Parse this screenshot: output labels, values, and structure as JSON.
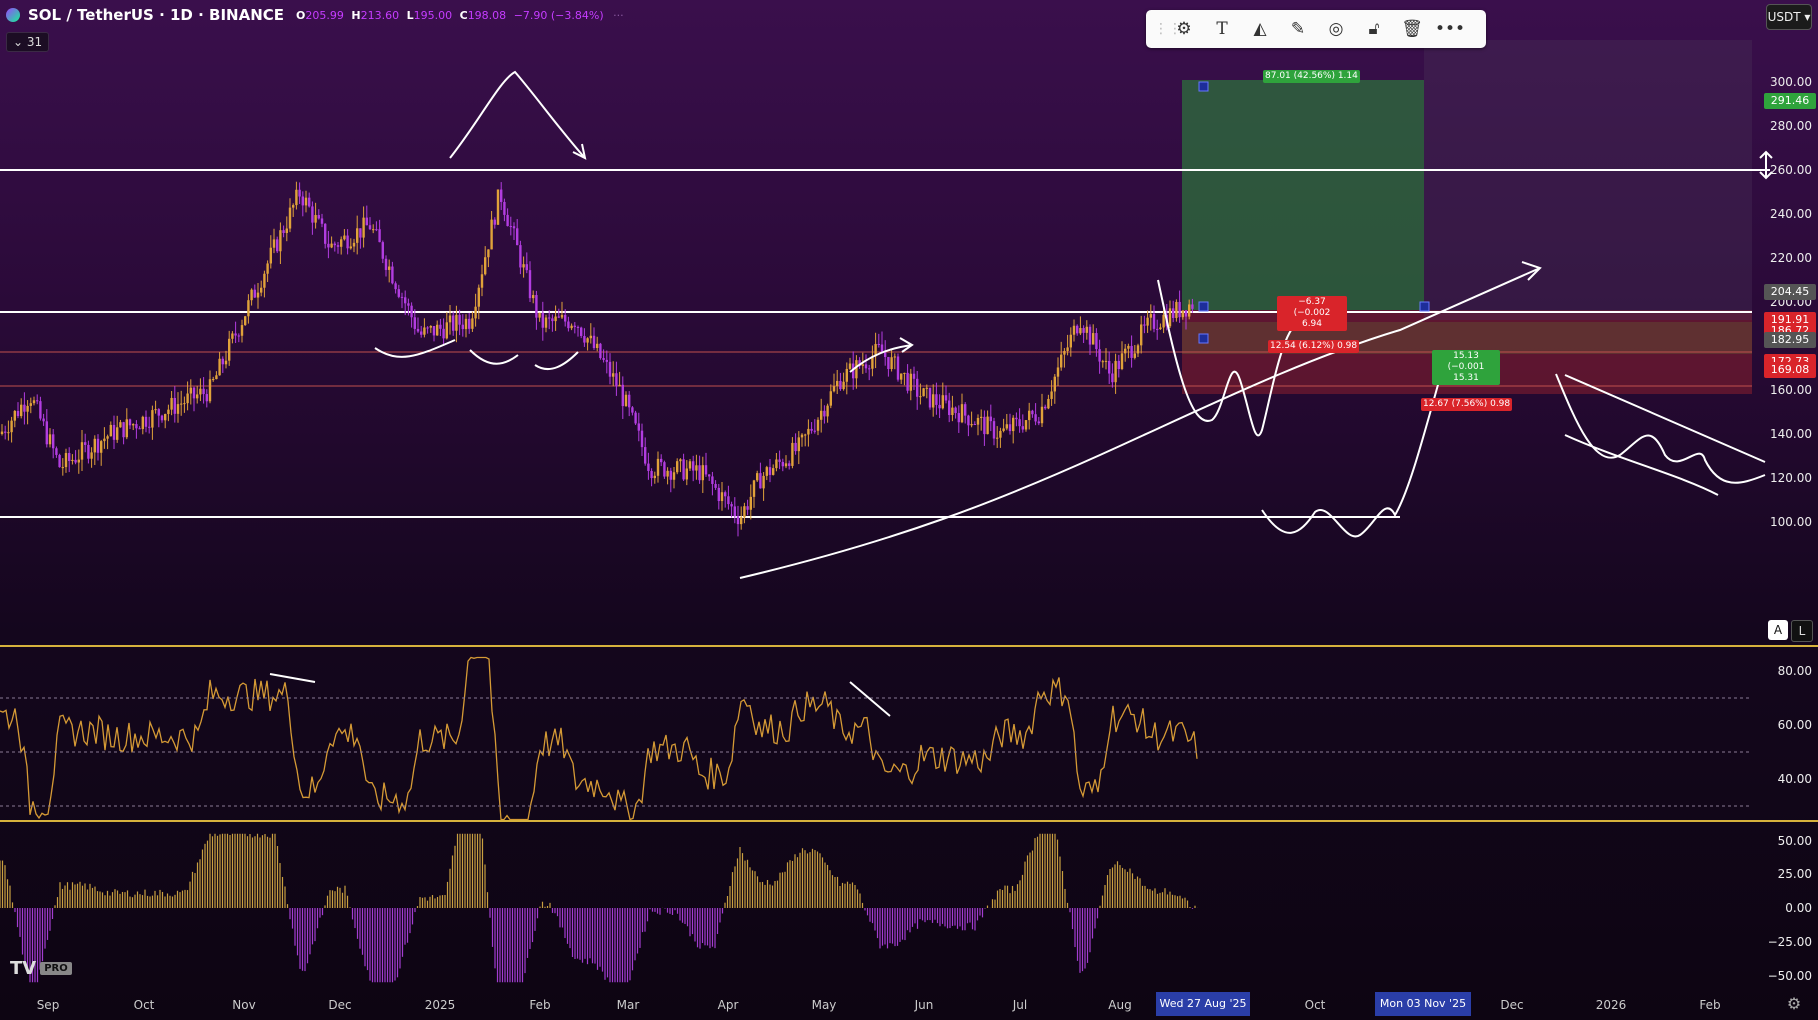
{
  "header": {
    "symbol": "SOL / TetherUS · 1D · BINANCE",
    "open_label": "O",
    "open": "205.99",
    "high_label": "H",
    "high": "213.60",
    "low_label": "L",
    "low": "195.00",
    "close_label": "C",
    "close": "198.08",
    "change": "−7.90 (−3.84%)",
    "more": "···",
    "indicator_count": "31"
  },
  "toolbar": {
    "grip_icon": "drag-handle-icon",
    "icons": [
      "template-icon",
      "text-icon",
      "fill-icon",
      "line-color-icon",
      "settings-icon",
      "lock-icon",
      "delete-icon",
      "more-icon"
    ]
  },
  "currency": "USDT",
  "price_axis": {
    "labels": [
      "300.00",
      "280.00",
      "260.00",
      "240.00",
      "220.00",
      "200.00",
      "160.00",
      "140.00",
      "120.00",
      "100.00"
    ],
    "tags": [
      {
        "value": "291.46",
        "color": "#2fa33c"
      },
      {
        "value": "204.45",
        "color": "#555555"
      },
      {
        "value": "191.91",
        "color": "#d9242a"
      },
      {
        "value": "186.72",
        "color": "#d9242a"
      },
      {
        "value": "182.95",
        "color": "#555555"
      },
      {
        "value": "172.73",
        "color": "#d9242a"
      },
      {
        "value": "169.08",
        "color": "#d9242a"
      }
    ]
  },
  "rsi_axis": {
    "labels": [
      "80.00",
      "60.00",
      "40.00"
    ]
  },
  "osc_axis": {
    "labels": [
      "50.00",
      "25.00",
      "0.00",
      "−25.00",
      "−50.00"
    ]
  },
  "position": {
    "target_label": "87.01 (42.56%) 1.14",
    "stop_label_line1": "−6.37 (−0.002",
    "stop_label_line2": "6.94",
    "entry_label": "12.54 (6.12%) 0.98",
    "green_label_line1": "15.13 (−0.001",
    "green_label_line2": "15.31",
    "red_label": "12.67 (7.56%) 0.98"
  },
  "scale_buttons": {
    "auto": "A",
    "log": "L"
  },
  "time_axis": {
    "labels": [
      "Sep",
      "Oct",
      "Nov",
      "Dec",
      "2025",
      "Feb",
      "Mar",
      "Apr",
      "May",
      "Jun",
      "Jul",
      "Aug",
      "Oct",
      "Dec",
      "2026",
      "Feb"
    ],
    "marker_start": "Wed 27 Aug '25",
    "marker_end": "Mon 03 Nov '25"
  },
  "branding": {
    "logo": "TV",
    "badge": "PRO"
  }
}
